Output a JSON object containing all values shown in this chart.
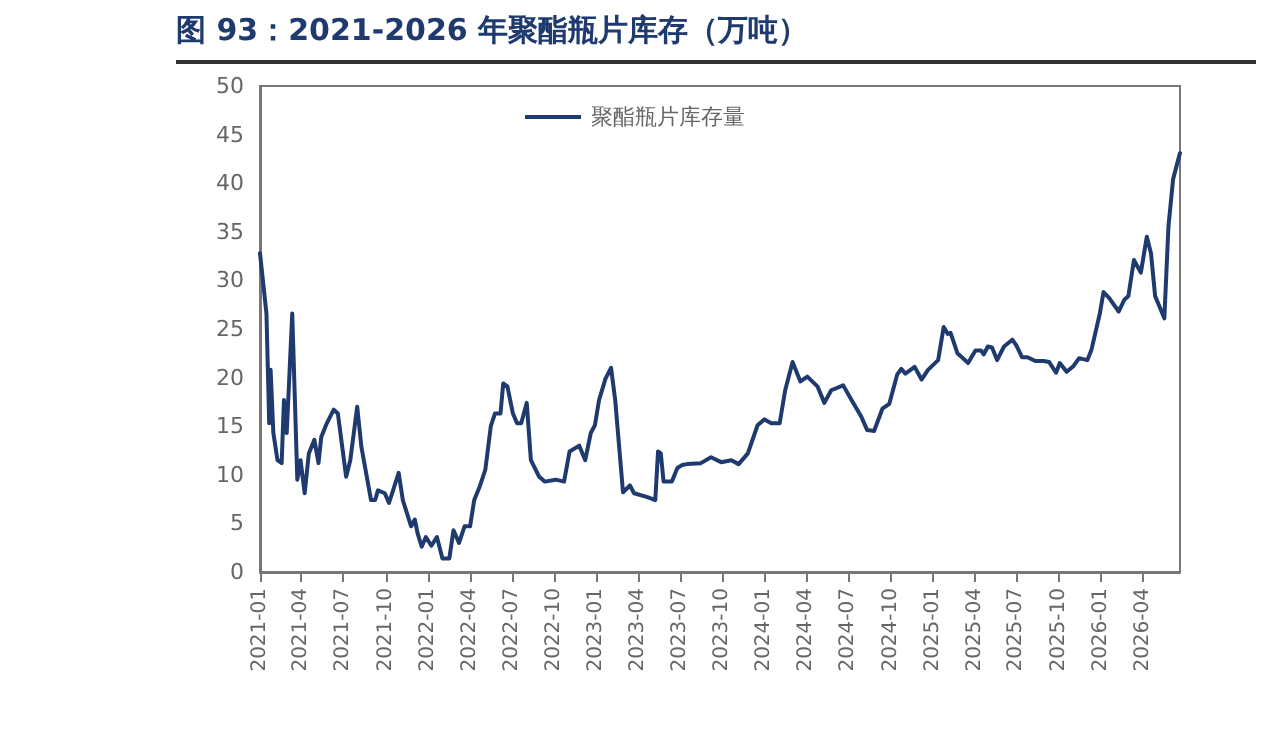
{
  "chart_data": {
    "type": "line",
    "title": "图 93：2021-2026 年聚酯瓶片库存（万吨）",
    "x": [
      "2021-01-01",
      "2021-01-15",
      "2021-01-21",
      "2021-01-24",
      "2021-01-30",
      "2021-02-08",
      "2021-02-17",
      "2021-02-22",
      "2021-02-28",
      "2021-03-12",
      "2021-03-23",
      "2021-03-30",
      "2021-04-08",
      "2021-04-17",
      "2021-04-29",
      "2021-05-08",
      "2021-05-14",
      "2021-05-26",
      "2021-06-10",
      "2021-06-19",
      "2021-07-07",
      "2021-07-16",
      "2021-07-31",
      "2021-08-09",
      "2021-08-30",
      "2021-09-08",
      "2021-09-14",
      "2021-09-29",
      "2021-10-08",
      "2021-10-29",
      "2021-11-07",
      "2021-11-25",
      "2021-12-03",
      "2021-12-09",
      "2021-12-18",
      "2021-12-27",
      "2022-01-08",
      "2022-01-20",
      "2022-02-01",
      "2022-02-16",
      "2022-02-25",
      "2022-03-09",
      "2022-03-21",
      "2022-04-02",
      "2022-04-11",
      "2022-04-23",
      "2022-05-05",
      "2022-05-17",
      "2022-05-26",
      "2022-06-07",
      "2022-06-13",
      "2022-06-22",
      "2022-07-04",
      "2022-07-13",
      "2022-07-22",
      "2022-08-03",
      "2022-08-12",
      "2022-08-30",
      "2022-09-11",
      "2022-10-05",
      "2022-10-23",
      "2022-11-04",
      "2022-11-25",
      "2022-12-08",
      "2022-12-20",
      "2022-12-29",
      "2023-01-07",
      "2023-01-21",
      "2023-02-02",
      "2023-02-11",
      "2023-02-28",
      "2023-03-15",
      "2023-03-24",
      "2023-04-22",
      "2023-05-09",
      "2023-05-15",
      "2023-05-21",
      "2023-05-27",
      "2023-06-14",
      "2023-06-26",
      "2023-07-06",
      "2023-07-17",
      "2023-08-16",
      "2023-09-07",
      "2023-09-29",
      "2023-10-21",
      "2023-11-06",
      "2023-11-26",
      "2023-12-17",
      "2024-01-01",
      "2024-01-16",
      "2024-02-03",
      "2024-02-15",
      "2024-03-02",
      "2024-03-19",
      "2024-04-03",
      "2024-04-25",
      "2024-05-10",
      "2024-05-25",
      "2024-06-20",
      "2024-07-08",
      "2024-07-29",
      "2024-08-11",
      "2024-08-26",
      "2024-09-13",
      "2024-09-28",
      "2024-10-15",
      "2024-10-24",
      "2024-11-02",
      "2024-11-22",
      "2024-12-07",
      "2024-12-21",
      "2025-01-12",
      "2025-01-24",
      "2025-02-02",
      "2025-02-08",
      "2025-02-23",
      "2025-03-18",
      "2025-04-03",
      "2025-04-15",
      "2025-04-21",
      "2025-04-30",
      "2025-05-09",
      "2025-05-20",
      "2025-06-04",
      "2025-06-22",
      "2025-07-01",
      "2025-07-13",
      "2025-07-25",
      "2025-08-11",
      "2025-08-29",
      "2025-09-10",
      "2025-09-25",
      "2025-10-03",
      "2025-10-18",
      "2025-11-02",
      "2025-11-14",
      "2025-12-02",
      "2025-12-11",
      "2025-12-29",
      "2026-01-06",
      "2026-01-18",
      "2026-02-08",
      "2026-02-20",
      "2026-03-01",
      "2026-03-13",
      "2026-03-28",
      "2026-04-10",
      "2026-04-19",
      "2026-04-28",
      "2026-05-18",
      "2026-05-27",
      "2026-06-06",
      "2026-06-17",
      "2026-06-21"
    ],
    "series": [
      {
        "name": "聚酯瓶片库存量",
        "color": "#1f3a6e",
        "values": [
          32.8,
          26.6,
          15.3,
          20.8,
          14.3,
          11.5,
          11.2,
          17.7,
          14.3,
          26.6,
          9.5,
          11.5,
          8.1,
          12.2,
          13.6,
          11.2,
          13.9,
          15.3,
          16.7,
          16.3,
          9.8,
          11.5,
          17.0,
          12.9,
          7.4,
          7.4,
          8.4,
          8.1,
          7.1,
          10.2,
          7.4,
          4.7,
          5.4,
          4.0,
          2.6,
          3.6,
          2.7,
          3.6,
          1.4,
          1.4,
          4.3,
          3.0,
          4.7,
          4.7,
          7.4,
          8.8,
          10.5,
          15.0,
          16.3,
          16.3,
          19.4,
          19.1,
          16.3,
          15.3,
          15.3,
          17.4,
          11.5,
          9.8,
          9.3,
          9.5,
          9.3,
          12.4,
          13.0,
          11.5,
          14.3,
          15.1,
          17.7,
          19.9,
          21.0,
          17.7,
          8.2,
          8.9,
          8.1,
          7.7,
          7.4,
          12.4,
          12.2,
          9.3,
          9.3,
          10.7,
          11.0,
          11.1,
          11.2,
          11.8,
          11.3,
          11.5,
          11.1,
          12.2,
          15.1,
          15.7,
          15.3,
          15.3,
          18.7,
          21.6,
          19.6,
          20.1,
          19.1,
          17.4,
          18.7,
          19.2,
          17.7,
          16.0,
          14.6,
          14.5,
          16.8,
          17.3,
          20.3,
          20.9,
          20.4,
          21.1,
          19.8,
          20.8,
          21.8,
          25.2,
          24.5,
          24.6,
          22.5,
          21.5,
          22.8,
          22.8,
          22.4,
          23.2,
          23.1,
          21.8,
          23.2,
          23.9,
          23.3,
          22.1,
          22.1,
          21.7,
          21.7,
          21.6,
          20.5,
          21.5,
          20.6,
          21.2,
          22.0,
          21.8,
          22.9,
          26.6,
          28.8,
          28.2,
          26.8,
          28.0,
          28.4,
          32.1,
          30.8,
          34.5,
          32.8,
          28.4,
          26.1,
          35.6,
          40.4,
          42.4,
          43.1
        ]
      }
    ],
    "xlim": [
      "2021-01-01",
      "2026-06-21"
    ],
    "xticks": [
      "2021-01",
      "2021-04",
      "2021-07",
      "2021-10",
      "2022-01",
      "2022-04",
      "2022-07",
      "2022-10",
      "2023-01",
      "2023-04",
      "2023-07",
      "2023-10",
      "2024-01",
      "2024-04",
      "2024-07",
      "2024-10",
      "2025-01",
      "2025-04",
      "2025-07",
      "2025-10",
      "2026-01",
      "2026-04"
    ],
    "ylim": [
      0,
      50
    ],
    "yticks": [
      0,
      5,
      10,
      15,
      20,
      25,
      30,
      35,
      40,
      45,
      50
    ],
    "legend": "top",
    "marker": "none",
    "line_style": "solid"
  }
}
